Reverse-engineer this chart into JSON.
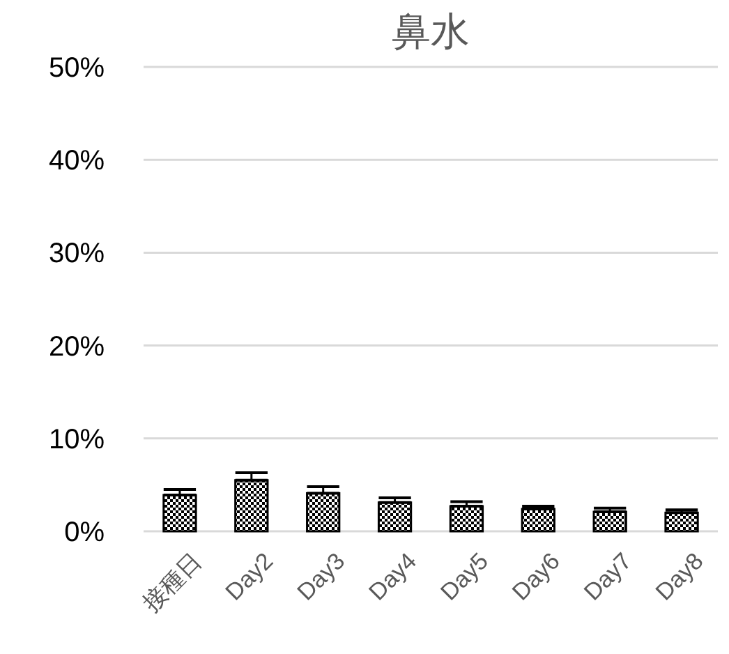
{
  "chart_data": {
    "type": "bar",
    "title": "鼻水",
    "categories": [
      "接種日",
      "Day2",
      "Day3",
      "Day4",
      "Day5",
      "Day6",
      "Day7",
      "Day8"
    ],
    "values": [
      3.9,
      5.5,
      4.1,
      3.1,
      2.7,
      2.4,
      2.1,
      2.0
    ],
    "errors": [
      [
        3.9,
        4.5
      ],
      [
        5.5,
        6.3
      ],
      [
        4.1,
        4.8
      ],
      [
        3.1,
        3.6
      ],
      [
        2.7,
        3.2
      ],
      [
        2.4,
        2.7
      ],
      [
        2.1,
        2.5
      ],
      [
        2.0,
        2.3
      ]
    ],
    "color": "#000000",
    "ylim": [
      0,
      50
    ],
    "yticks": [
      {
        "value": 0,
        "label": "0%"
      },
      {
        "value": 10,
        "label": "10%"
      },
      {
        "value": 20,
        "label": "20%"
      },
      {
        "value": 30,
        "label": "30%"
      },
      {
        "value": 40,
        "label": "40%"
      },
      {
        "value": 50,
        "label": "50%"
      }
    ],
    "grid": "y"
  }
}
